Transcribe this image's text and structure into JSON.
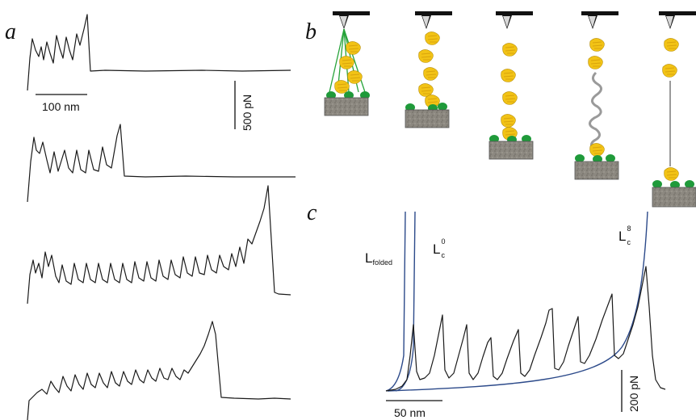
{
  "figure": {
    "panels": {
      "a": {
        "letter": "a",
        "scale_x": "100 nm",
        "scale_y": "500 pN"
      },
      "b": {
        "letter": "b"
      },
      "c": {
        "letter": "c",
        "scale_x": "50 nm",
        "scale_y": "200 pN",
        "curve_labels": [
          {
            "main": "L",
            "sub": "folded",
            "sup": ""
          },
          {
            "main": "L",
            "sub": "c",
            "sup": "0"
          },
          {
            "main": "L",
            "sub": "c",
            "sup": "8"
          }
        ]
      }
    },
    "colors": {
      "trace": "#1a1a1a",
      "wlc_fit": "#2c4a8a",
      "protein": "#f2c316",
      "anchor": "#1f9a3a",
      "tether_green": "#27a33a",
      "unfolded_chain": "#9a9a9a",
      "substrate": "#8c8880",
      "tip": "#111111"
    },
    "icons": [
      "afm-cantilever-icon",
      "protein-domain-icon",
      "substrate-icon"
    ],
    "traces_a": [
      {
        "peaks": 6,
        "final_rupture": "tall"
      },
      {
        "peaks": 6,
        "final_rupture": "tall"
      },
      {
        "peaks": 16,
        "final_rupture": "tall"
      },
      {
        "peaks": 11,
        "final_rupture": "tall"
      }
    ],
    "trace_c": {
      "peaks": 9
    },
    "schematic_b": [
      {
        "state": "multiple tethers",
        "domains": 4
      },
      {
        "state": "stacked domains",
        "domains": 5
      },
      {
        "state": "extended folded chain",
        "domains": 5
      },
      {
        "state": "partially unfolded",
        "domains": 3
      },
      {
        "state": "fully unfolded",
        "domains": 3
      }
    ]
  }
}
